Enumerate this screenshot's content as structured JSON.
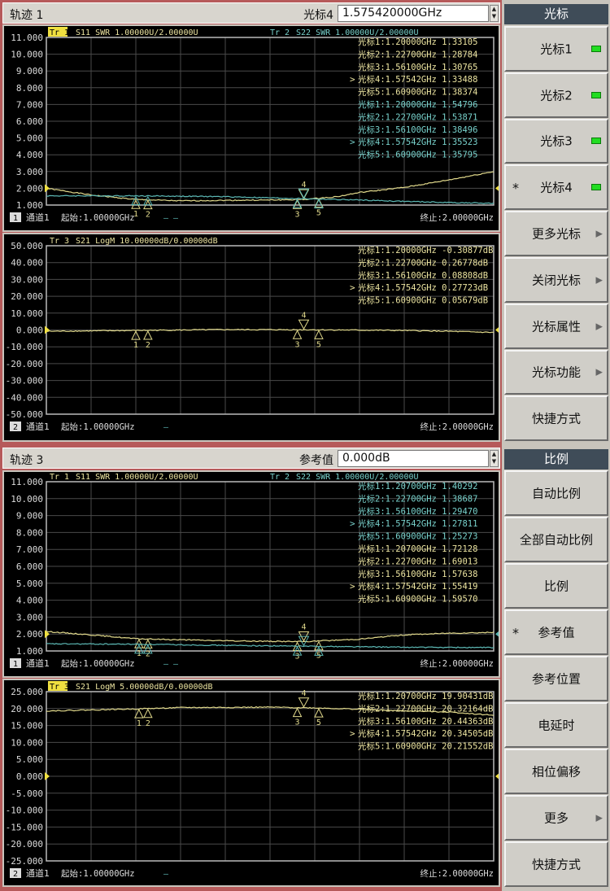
{
  "colors": {
    "trace_yellow": "#e2da8c",
    "trace_cyan": "#5cb8b4",
    "text_yellow": "#ece4a0",
    "text_cyan": "#78d2cc",
    "grid": "#4a4a4a",
    "menu_title_bg": "#3f4c58",
    "led_on": "#22dd22"
  },
  "top": {
    "header": {
      "title": "轨迹 1",
      "field_label": "光标4",
      "field_value": "1.575420000GHz"
    }
  },
  "bottom": {
    "header": {
      "title": "轨迹 3",
      "field_label": "参考值",
      "field_value": "0.000dB"
    }
  },
  "menu_top": {
    "title": "光标",
    "items": [
      {
        "label": "光标1",
        "indicator": true
      },
      {
        "label": "光标2",
        "indicator": true
      },
      {
        "label": "光标3",
        "indicator": true
      },
      {
        "label": "光标4",
        "indicator": true,
        "star": "*"
      },
      {
        "label": "更多光标",
        "arrow": "▶"
      },
      {
        "label": "关闭光标",
        "arrow": "▶"
      },
      {
        "label": "光标属性",
        "arrow": "▶"
      },
      {
        "label": "光标功能",
        "arrow": "▶"
      },
      {
        "label": "快捷方式"
      }
    ]
  },
  "menu_bottom": {
    "title": "比例",
    "items": [
      {
        "label": "自动比例"
      },
      {
        "label": "全部自动比例"
      },
      {
        "label": "比例"
      },
      {
        "label": "参考值",
        "star": "*"
      },
      {
        "label": "参考位置"
      },
      {
        "label": "电延时"
      },
      {
        "label": "相位偏移"
      },
      {
        "label": "更多",
        "arrow": "▶"
      },
      {
        "label": "快捷方式"
      }
    ]
  },
  "chart_data": [
    {
      "type": "line",
      "ylim": [
        1,
        11
      ],
      "yticks": [
        "11.000",
        "10.000",
        "9.000",
        "8.000",
        "7.000",
        "6.000",
        "5.000",
        "4.000",
        "3.000",
        "2.000",
        "1.000"
      ],
      "xlim": [
        1,
        2
      ],
      "ref_value": 2,
      "trace_headers": [
        {
          "label": "Tr 1",
          "text": "S11 SWR 1.00000U/2.00000U",
          "color": "yellow",
          "active": true
        },
        {
          "label": "Tr 2",
          "text": "S22 SWR 1.00000U/2.00000U",
          "color": "cyan"
        }
      ],
      "footer": {
        "num": "1",
        "channel": "通道1",
        "start": "起始:1.00000GHz",
        "dash": "— —",
        "stop": "终止:2.00000GHz"
      },
      "markers": [
        1.2,
        1.227,
        1.561,
        1.57542,
        1.609
      ],
      "active_marker": 4,
      "readouts": [
        {
          "text": "光标1:1.20000GHz 1.33105",
          "color": "yellow"
        },
        {
          "text": "光标2:1.22700GHz 1.28784",
          "color": "yellow"
        },
        {
          "text": "光标3:1.56100GHz 1.30765",
          "color": "yellow"
        },
        {
          "text": "光标4:1.57542GHz 1.33488",
          "color": "yellow",
          "active": true
        },
        {
          "text": "光标5:1.60900GHz 1.38374",
          "color": "yellow"
        },
        {
          "text": "光标1:1.20000GHz 1.54796",
          "color": "cyan"
        },
        {
          "text": "光标2:1.22700GHz 1.53871",
          "color": "cyan"
        },
        {
          "text": "光标3:1.56100GHz 1.38496",
          "color": "cyan"
        },
        {
          "text": "光标4:1.57542GHz 1.35523",
          "color": "cyan",
          "active": true
        },
        {
          "text": "光标5:1.60900GHz 1.35795",
          "color": "cyan"
        }
      ],
      "series": [
        {
          "name": "Tr 1",
          "color": "yellow",
          "x": [
            1,
            1.1,
            1.2,
            1.3,
            1.4,
            1.5,
            1.575,
            1.65,
            1.7,
            1.8,
            1.9,
            2
          ],
          "y": [
            2.0,
            1.6,
            1.33,
            1.25,
            1.28,
            1.3,
            1.33,
            1.5,
            1.75,
            2.05,
            2.5,
            3.0
          ]
        },
        {
          "name": "Tr 2",
          "color": "cyan",
          "x": [
            1,
            1.2,
            1.4,
            1.56,
            1.7,
            1.8,
            1.9,
            2
          ],
          "y": [
            1.55,
            1.55,
            1.5,
            1.39,
            1.3,
            1.22,
            1.15,
            1.1
          ]
        }
      ]
    },
    {
      "type": "line",
      "ylim": [
        -50,
        50
      ],
      "yticks": [
        "50.000",
        "40.000",
        "30.000",
        "20.000",
        "10.000",
        "0.000",
        "-10.000",
        "-20.000",
        "-30.000",
        "-40.000",
        "-50.000"
      ],
      "xlim": [
        1,
        2
      ],
      "ref_value": 0,
      "trace_headers": [
        {
          "label": "Tr 3",
          "text": "S21 LogM 10.00000dB/0.00000dB",
          "color": "yellow"
        }
      ],
      "footer": {
        "num": "2",
        "channel": "通道1",
        "start": "起始:1.00000GHz",
        "dash": "—",
        "stop": "终止:2.00000GHz"
      },
      "markers": [
        1.2,
        1.227,
        1.561,
        1.57542,
        1.609
      ],
      "active_marker": 4,
      "readouts": [
        {
          "text": "光标1:1.20000GHz -0.30877dB",
          "color": "yellow"
        },
        {
          "text": "光标2:1.22700GHz 0.26778dB",
          "color": "yellow"
        },
        {
          "text": "光标3:1.56100GHz 0.08808dB",
          "color": "yellow"
        },
        {
          "text": "光标4:1.57542GHz 0.27723dB",
          "color": "yellow",
          "active": true
        },
        {
          "text": "光标5:1.60900GHz 0.05679dB",
          "color": "yellow"
        }
      ],
      "series": [
        {
          "name": "Tr 3",
          "color": "yellow",
          "x": [
            1,
            1.2,
            1.4,
            1.6,
            1.8,
            1.9,
            2
          ],
          "y": [
            -0.8,
            -0.3,
            0.2,
            0.1,
            -0.3,
            -0.8,
            -1.5
          ]
        }
      ]
    },
    {
      "type": "line",
      "ylim": [
        1,
        11
      ],
      "yticks": [
        "11.000",
        "10.000",
        "9.000",
        "8.000",
        "7.000",
        "6.000",
        "5.000",
        "4.000",
        "3.000",
        "2.000",
        "1.000"
      ],
      "xlim": [
        1,
        2
      ],
      "ref_value": 2,
      "trace_headers": [
        {
          "label": "Tr 1",
          "text": "S11 SWR 1.00000U/2.00000U",
          "color": "yellow"
        },
        {
          "label": "Tr 2",
          "text": "S22 SWR 1.00000U/2.00000U",
          "color": "cyan"
        }
      ],
      "footer": {
        "num": "1",
        "channel": "通道1",
        "start": "起始:1.00000GHz",
        "dash": "— —",
        "stop": "终止:2.00000GHz"
      },
      "markers": [
        1.207,
        1.227,
        1.561,
        1.57542,
        1.609
      ],
      "active_marker": 4,
      "readouts": [
        {
          "text": "光标1:1.20700GHz 1.40292",
          "color": "cyan"
        },
        {
          "text": "光标2:1.22700GHz 1.38687",
          "color": "cyan"
        },
        {
          "text": "光标3:1.56100GHz 1.29470",
          "color": "cyan"
        },
        {
          "text": "光标4:1.57542GHz 1.27811",
          "color": "cyan",
          "active": true
        },
        {
          "text": "光标5:1.60900GHz 1.25273",
          "color": "cyan"
        },
        {
          "text": "光标1:1.20700GHz 1.72128",
          "color": "yellow"
        },
        {
          "text": "光标2:1.22700GHz 1.69013",
          "color": "yellow"
        },
        {
          "text": "光标3:1.56100GHz 1.57638",
          "color": "yellow"
        },
        {
          "text": "光标4:1.57542GHz 1.55419",
          "color": "yellow",
          "active": true
        },
        {
          "text": "光标5:1.60900GHz 1.59570",
          "color": "yellow"
        }
      ],
      "series": [
        {
          "name": "Tr 1",
          "color": "yellow",
          "x": [
            1,
            1.1,
            1.2,
            1.4,
            1.575,
            1.7,
            1.8,
            1.9,
            2
          ],
          "y": [
            2.15,
            1.95,
            1.72,
            1.6,
            1.55,
            1.7,
            1.95,
            2.05,
            2.1
          ]
        },
        {
          "name": "Tr 2",
          "color": "cyan",
          "x": [
            1,
            1.2,
            1.4,
            1.575,
            1.8,
            2
          ],
          "y": [
            1.42,
            1.4,
            1.33,
            1.28,
            1.22,
            1.2
          ]
        }
      ]
    },
    {
      "type": "line",
      "ylim": [
        -25,
        25
      ],
      "yticks": [
        "25.000",
        "20.000",
        "15.000",
        "10.000",
        "5.000",
        "0.000",
        "-5.000",
        "-10.000",
        "-15.000",
        "-20.000",
        "-25.000"
      ],
      "xlim": [
        1,
        2
      ],
      "ref_value": 0,
      "trace_headers": [
        {
          "label": "Tr 3",
          "text": "S21 LogM 5.00000dB/0.00000dB",
          "color": "yellow",
          "active": true
        }
      ],
      "footer": {
        "num": "2",
        "channel": "通道1",
        "start": "起始:1.00000GHz",
        "dash": "—",
        "stop": "终止:2.00000GHz"
      },
      "markers": [
        1.207,
        1.227,
        1.561,
        1.57542,
        1.609
      ],
      "active_marker": 4,
      "readouts": [
        {
          "text": "光标1:1.20700GHz 19.90431dB",
          "color": "yellow"
        },
        {
          "text": "光标2:1.22700GHz 20.32164dB",
          "color": "yellow"
        },
        {
          "text": "光标3:1.56100GHz 20.44363dB",
          "color": "yellow"
        },
        {
          "text": "光标4:1.57542GHz 20.34505dB",
          "color": "yellow",
          "active": true
        },
        {
          "text": "光标5:1.60900GHz 20.21552dB",
          "color": "yellow"
        }
      ],
      "series": [
        {
          "name": "Tr 3",
          "color": "yellow",
          "x": [
            1,
            1.1,
            1.2,
            1.3,
            1.5,
            1.6,
            1.7,
            1.8,
            1.9,
            2
          ],
          "y": [
            19.3,
            19.6,
            19.9,
            20.3,
            20.4,
            20.2,
            19.8,
            19.3,
            19.0,
            18.0
          ]
        }
      ]
    }
  ]
}
